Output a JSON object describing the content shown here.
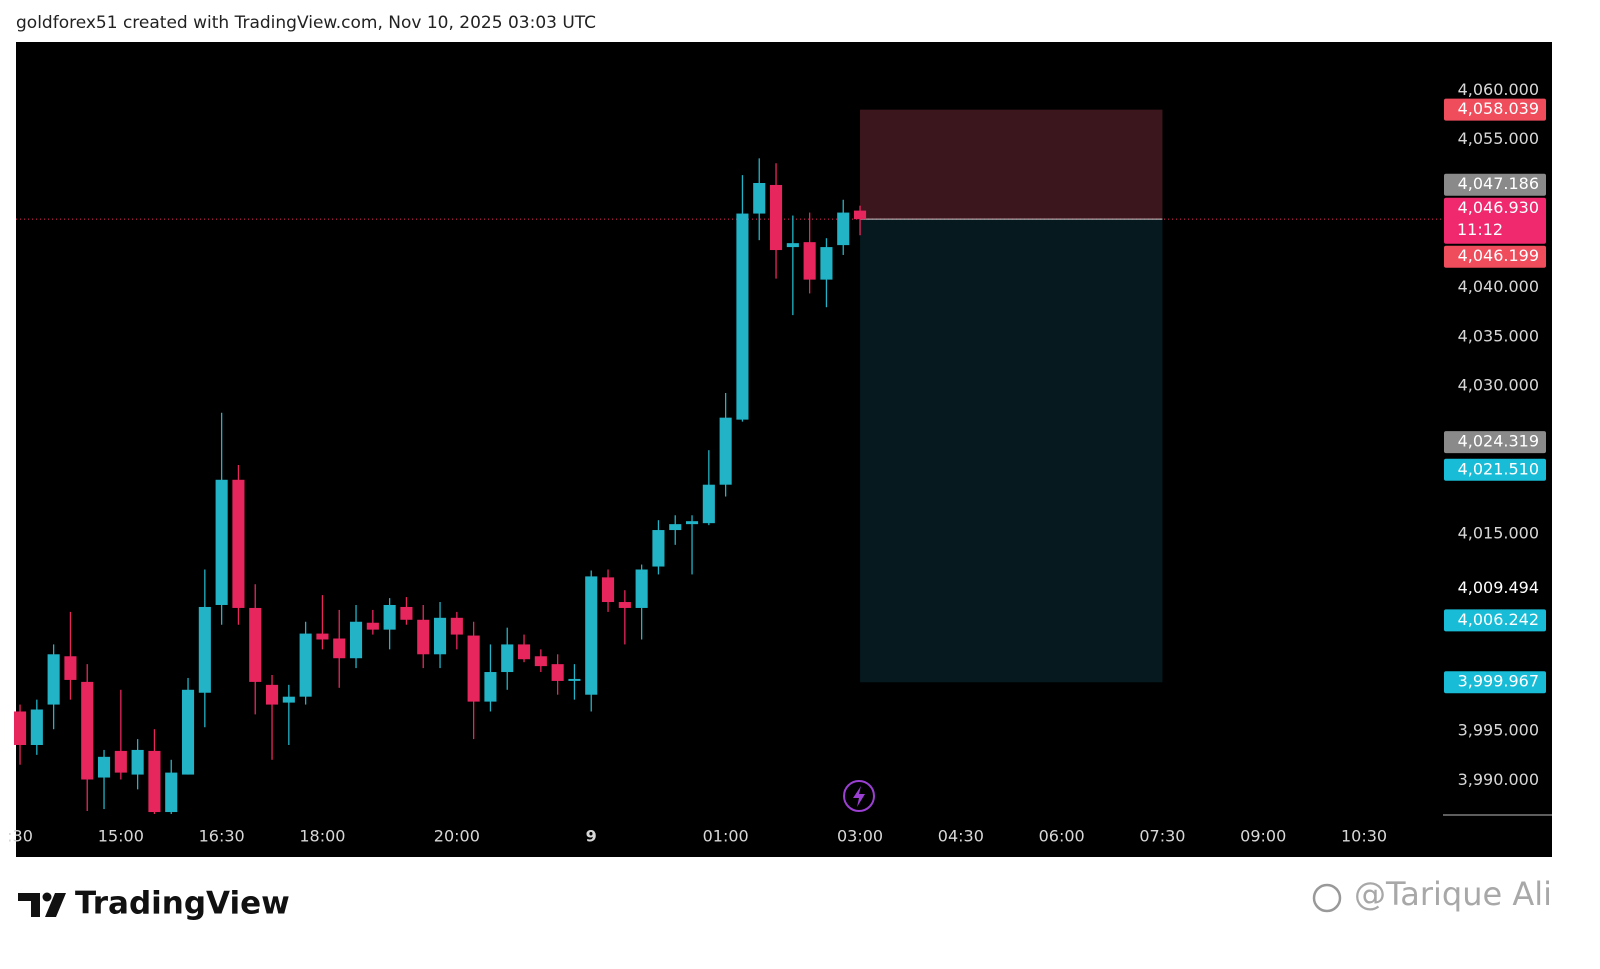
{
  "header": "goldforex51 created with TradingView.com, Nov 10, 2025 03:03 UTC",
  "brand": "TradingView",
  "watermark": "@Tarique Ali",
  "chart_data": {
    "type": "candlestick",
    "up_color": "#22b3c6",
    "down_color": "#e8265e",
    "x": [
      0,
      1,
      2,
      3,
      4,
      5,
      6,
      7,
      8,
      9,
      10,
      11,
      12,
      13,
      14,
      15,
      16,
      17,
      18,
      19,
      20,
      21,
      22,
      23,
      24,
      25,
      26,
      27,
      28,
      29,
      30,
      31,
      32,
      33,
      34,
      35,
      36,
      37,
      38,
      39,
      40,
      41,
      42,
      43,
      44,
      45,
      46,
      47,
      48,
      49,
      50
    ],
    "open": [
      3997.0,
      3993.6,
      3997.7,
      4002.6,
      4000.0,
      3990.3,
      3993.0,
      3990.6,
      3993.0,
      3986.8,
      3990.6,
      3998.9,
      4007.8,
      4020.5,
      4007.5,
      3999.7,
      3997.9,
      3998.5,
      4004.9,
      4004.4,
      4002.4,
      4006.0,
      4005.3,
      4007.6,
      4006.3,
      4002.8,
      4006.5,
      4004.7,
      3998.0,
      4001.0,
      4003.8,
      4002.6,
      4001.8,
      4000.1,
      3998.7,
      4010.6,
      4008.1,
      4007.5,
      4011.7,
      4015.4,
      4016.0,
      4016.1,
      4020.0,
      4026.6,
      4047.5,
      4050.4,
      4044.1,
      4044.6,
      4040.8,
      4044.3,
      4047.8
    ],
    "high": [
      3997.7,
      3998.2,
      4003.8,
      4007.1,
      4001.8,
      3993.1,
      3999.2,
      3994.2,
      3995.2,
      3992.1,
      4000.4,
      4011.4,
      4027.3,
      4022.0,
      4009.9,
      4000.7,
      3999.7,
      4006.1,
      4008.8,
      4007.3,
      4007.8,
      4007.3,
      4008.5,
      4008.6,
      4007.8,
      4008.1,
      4007.1,
      4006.1,
      4003.8,
      4005.5,
      4004.8,
      4003.3,
      4002.8,
      4001.8,
      4011.3,
      4011.4,
      4009.3,
      4011.9,
      4016.4,
      4016.9,
      4016.9,
      4023.5,
      4029.3,
      4051.4,
      4053.1,
      4052.6,
      4047.3,
      4047.6,
      4045.0,
      4048.9,
      4048.3
    ],
    "low": [
      3991.6,
      3992.6,
      3995.2,
      3998.2,
      3986.9,
      3987.1,
      3990.1,
      3989.1,
      3986.6,
      3986.6,
      3990.6,
      3995.4,
      4005.8,
      4005.8,
      3996.7,
      3992.1,
      3993.6,
      3997.7,
      4003.3,
      3999.4,
      4001.4,
      4004.8,
      4003.3,
      4005.8,
      4001.4,
      4001.4,
      4003.3,
      3994.2,
      3997.0,
      3999.2,
      4002.0,
      4001.0,
      3998.7,
      3998.2,
      3997.0,
      4007.1,
      4003.8,
      4004.3,
      4010.9,
      4013.9,
      4010.9,
      4015.9,
      4018.8,
      4026.4,
      4044.8,
      4040.9,
      4037.2,
      4039.4,
      4038.0,
      4043.3,
      4045.3
    ],
    "close": [
      3993.6,
      3997.2,
      4002.8,
      4000.2,
      3990.1,
      3992.4,
      3990.8,
      3993.1,
      3986.8,
      3990.8,
      3999.2,
      4007.6,
      4020.5,
      4007.5,
      4000.0,
      3997.7,
      3998.5,
      4004.9,
      4004.3,
      4002.4,
      4006.1,
      4005.3,
      4007.8,
      4006.3,
      4002.8,
      4006.5,
      4004.8,
      3998.0,
      4001.0,
      4003.8,
      4002.3,
      4001.6,
      4000.1,
      4000.3,
      4010.7,
      4008.1,
      4007.5,
      4011.4,
      4015.4,
      4016.0,
      4016.3,
      4020.0,
      4026.8,
      4047.5,
      4050.6,
      4043.8,
      4044.5,
      4040.8,
      4044.1,
      4047.6,
      4046.93
    ],
    "xlim": [
      -0.24,
      84.7
    ],
    "xticks": [
      {
        "value": 0,
        "label": ":30"
      },
      {
        "value": 6,
        "label": "15:00"
      },
      {
        "value": 12,
        "label": "16:30"
      },
      {
        "value": 18,
        "label": "18:00"
      },
      {
        "value": 26,
        "label": "20:00"
      },
      {
        "value": 34,
        "label": "9"
      },
      {
        "value": 42,
        "label": "01:00"
      },
      {
        "value": 50,
        "label": "03:00"
      },
      {
        "value": 56,
        "label": "04:30"
      },
      {
        "value": 62,
        "label": "06:00"
      },
      {
        "value": 68,
        "label": "07:30"
      },
      {
        "value": 74,
        "label": "09:00"
      },
      {
        "value": 80,
        "label": "10:30"
      }
    ],
    "ylim": [
      3986.5,
      4064.9
    ],
    "yticks": [
      {
        "value": 3990,
        "label": "3,990.000"
      },
      {
        "value": 3995,
        "label": "3,995.000"
      },
      {
        "value": 4015,
        "label": "4,015.000"
      },
      {
        "value": 4030,
        "label": "4,030.000"
      },
      {
        "value": 4035,
        "label": "4,035.000"
      },
      {
        "value": 4040,
        "label": "4,040.000"
      },
      {
        "value": 4055,
        "label": "4,055.000"
      },
      {
        "value": 4060,
        "label": "4,060.000"
      }
    ],
    "position": {
      "start": 50,
      "end": 68,
      "stop": 4058.039,
      "entry": 4046.93,
      "target": 3999.967,
      "stop_color": "#3c161d",
      "target_color": "#05191e"
    },
    "price_labels": [
      {
        "value": 4058.039,
        "label": "4,058.039",
        "color": "#ef4c5c"
      },
      {
        "value": 4047.186,
        "label": "4,047.186",
        "color": "#8a8a8a"
      },
      {
        "value": 4046.93,
        "label": "4,046.930",
        "color": "#f0286d",
        "countdown": "11:12"
      },
      {
        "value": 4046.199,
        "label": "4,046.199",
        "color": "#ef4c5c"
      },
      {
        "value": 4024.319,
        "label": "4,024.319",
        "color": "#8a8a8a"
      },
      {
        "value": 4021.51,
        "label": "4,021.510",
        "color": "#19bcd6"
      },
      {
        "value": 4009.494,
        "label": "4,009.494",
        "color": null
      },
      {
        "value": 4006.242,
        "label": "4,006.242",
        "color": "#19bcd6"
      },
      {
        "value": 3999.967,
        "label": "3,999.967",
        "color": "#19bcd6"
      }
    ]
  }
}
